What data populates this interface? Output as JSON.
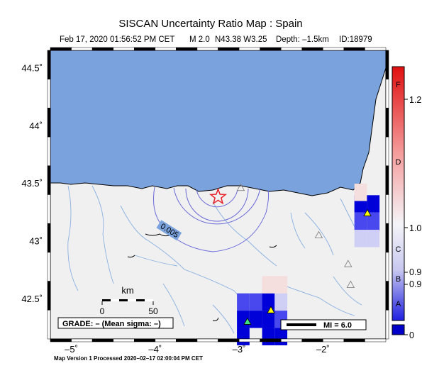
{
  "title": "SISCAN Uncertainty Ratio Map : Spain",
  "subtitle": {
    "datetime": "Feb 17, 2020 01:56:52 PM CET",
    "magnitude": "M 2.0",
    "location": "N43.38 W3.25",
    "depth": "Depth: –1.5km",
    "event_id": "ID:18979"
  },
  "axes": {
    "lon_ticks": [
      {
        "value": -5,
        "label": "–5˚"
      },
      {
        "value": -4,
        "label": "–4˚"
      },
      {
        "value": -3,
        "label": "–3˚"
      },
      {
        "value": -2,
        "label": "–2˚"
      }
    ],
    "lat_ticks": [
      {
        "value": 44.5,
        "label": "44.5˚"
      },
      {
        "value": 44.0,
        "label": "44˚"
      },
      {
        "value": 43.5,
        "label": "43.5˚"
      },
      {
        "value": 43.0,
        "label": "43˚"
      },
      {
        "value": 42.5,
        "label": "42.5˚"
      }
    ],
    "lon_range": [
      -5.25,
      -1.25
    ],
    "lat_range": [
      42.15,
      44.65
    ]
  },
  "event": {
    "lon": -3.25,
    "lat": 43.38,
    "symbol": "star-icon",
    "color": "#e8202a"
  },
  "contour_label": "0.005",
  "scalebar": {
    "unit": "km",
    "labels": [
      "0",
      "50"
    ]
  },
  "grade_box": "GRADE: – (Mean sigma: –)",
  "mi_legend": "MI = 6.0",
  "colorbar": {
    "grade_letters": [
      "F",
      "D",
      "C",
      "B",
      "A"
    ],
    "values": [
      "1.2",
      "1.0",
      "0.9",
      "0.9",
      "0"
    ],
    "colors": {
      "top": "#e01010",
      "mid": "#f4f4f8",
      "bottom": "#2020e0",
      "base": "#0000c8"
    }
  },
  "footer": "Map Version 1 Processed 2020–02–17 02:00:04 PM CET",
  "colors": {
    "sea": "#7aa2dc",
    "land": "#f0f0f0",
    "river": "#8ab0e0",
    "contour": "#6a6ad8",
    "station_green": "#40e080",
    "station_yellow": "#ffff00"
  },
  "grid_cells": [
    {
      "lon": -1.55,
      "lat": 43.32,
      "level": "dark"
    },
    {
      "lon": -1.4,
      "lat": 43.32,
      "level": "dark"
    },
    {
      "lon": -1.55,
      "lat": 43.17,
      "level": "mid"
    },
    {
      "lon": -1.4,
      "lat": 43.17,
      "level": "mid"
    },
    {
      "lon": -1.55,
      "lat": 43.02,
      "level": "light"
    },
    {
      "lon": -1.4,
      "lat": 43.02,
      "level": "light"
    },
    {
      "lon": -1.55,
      "lat": 43.42,
      "level": "faint"
    },
    {
      "lon": -2.95,
      "lat": 42.47,
      "level": "mid"
    },
    {
      "lon": -2.8,
      "lat": 42.47,
      "level": "mid"
    },
    {
      "lon": -2.65,
      "lat": 42.47,
      "level": "dark"
    },
    {
      "lon": -2.5,
      "lat": 42.47,
      "level": "light"
    },
    {
      "lon": -2.95,
      "lat": 42.32,
      "level": "dark"
    },
    {
      "lon": -2.8,
      "lat": 42.32,
      "level": "dark"
    },
    {
      "lon": -2.65,
      "lat": 42.32,
      "level": "dark"
    },
    {
      "lon": -2.5,
      "lat": 42.32,
      "level": "mid"
    },
    {
      "lon": -2.95,
      "lat": 42.17,
      "level": "dark"
    },
    {
      "lon": -2.65,
      "lat": 42.17,
      "level": "dark"
    },
    {
      "lon": -2.5,
      "lat": 42.17,
      "level": "dark"
    },
    {
      "lon": -2.65,
      "lat": 42.62,
      "level": "faint"
    },
    {
      "lon": -2.5,
      "lat": 42.62,
      "level": "faint"
    }
  ],
  "stations": [
    {
      "lon": -1.47,
      "lat": 43.24,
      "type": "yellow"
    },
    {
      "lon": -2.62,
      "lat": 42.4,
      "type": "yellow"
    },
    {
      "lon": -2.9,
      "lat": 42.3,
      "type": "green"
    },
    {
      "lon": -2.98,
      "lat": 43.46,
      "type": "open"
    },
    {
      "lon": -2.05,
      "lat": 43.05,
      "type": "open"
    },
    {
      "lon": -1.7,
      "lat": 42.8,
      "type": "open"
    },
    {
      "lon": -1.67,
      "lat": 42.62,
      "type": "open"
    }
  ]
}
